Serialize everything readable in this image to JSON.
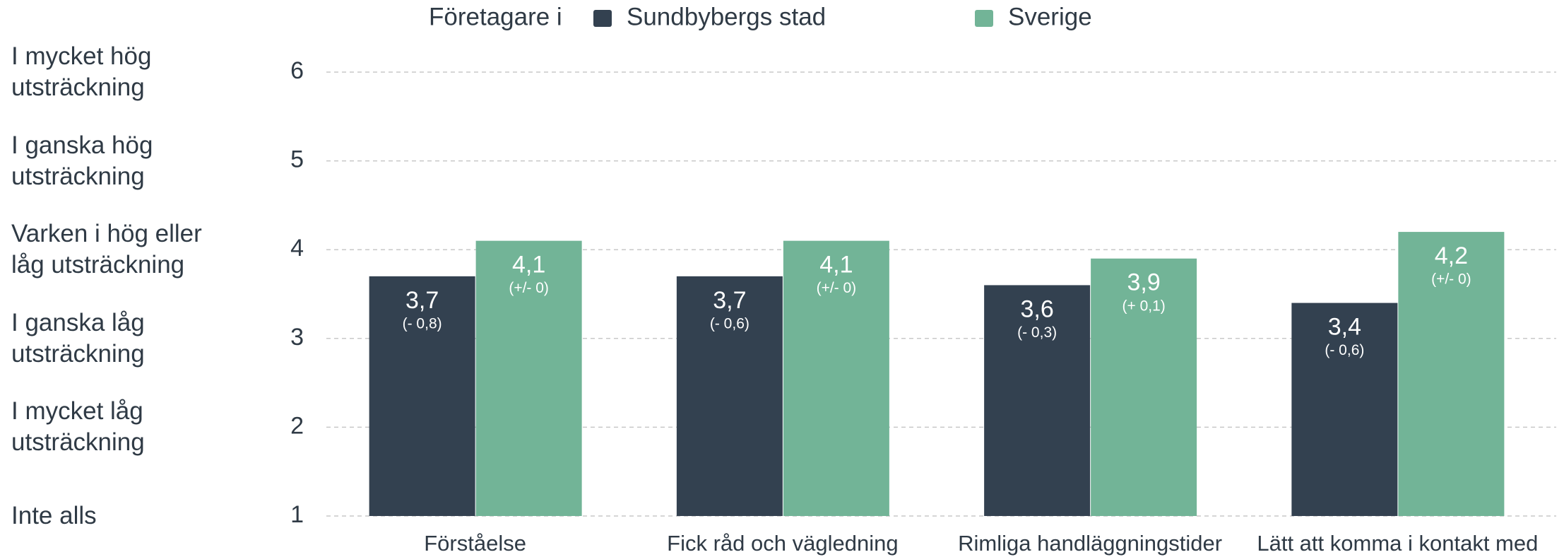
{
  "chart_data": {
    "type": "bar",
    "legend_title": "Företagare i",
    "categories": [
      "Förståelse",
      "Fick råd och vägledning",
      "Rimliga handläggningstider",
      "Lätt att komma i kontakt med"
    ],
    "series": [
      {
        "name": "Sundbybergs stad",
        "color": "#334150",
        "values": [
          3.7,
          3.7,
          3.6,
          3.4
        ],
        "value_labels": [
          "3,7",
          "3,7",
          "3,6",
          "3,4"
        ],
        "change_labels": [
          "(- 0,8)",
          "(- 0,6)",
          "(- 0,3)",
          "(- 0,6)"
        ]
      },
      {
        "name": "Sverige",
        "color": "#72b497",
        "values": [
          4.1,
          4.1,
          3.9,
          4.2
        ],
        "value_labels": [
          "4,1",
          "4,1",
          "3,9",
          "4,2"
        ],
        "change_labels": [
          "(+/- 0)",
          "(+/- 0)",
          "(+ 0,1)",
          "(+/- 0)"
        ]
      }
    ],
    "ylim": [
      1,
      6
    ],
    "yticks": [
      1,
      2,
      3,
      4,
      5,
      6
    ],
    "scale_labels": [
      "Inte alls",
      "I mycket låg utsträckning",
      "I ganska låg utsträckning",
      "Varken i hög eller låg utsträckning",
      "I ganska hög utsträckning",
      "I mycket hög utsträckning"
    ],
    "grid": true
  }
}
